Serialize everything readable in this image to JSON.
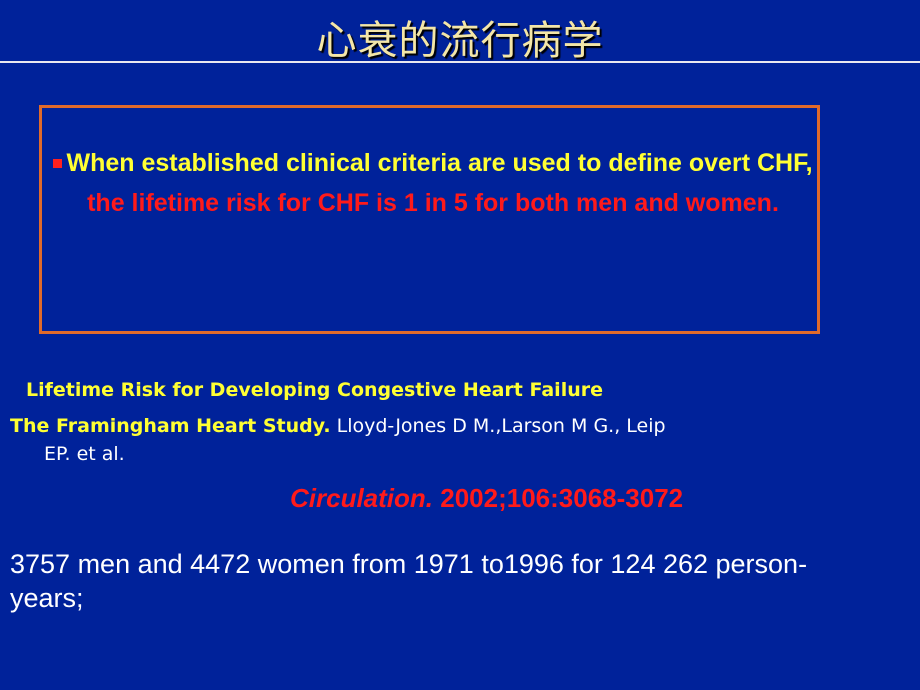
{
  "title": "心衰的流行病学",
  "colors": {
    "background": "#00229a",
    "title": "#f3e6a8",
    "box_border": "#e06a2a",
    "highlight_yellow": "#ffff33",
    "highlight_red": "#ff1a1a"
  },
  "box": {
    "bullet_icon": "square-bullet",
    "text_yellow": "When established clinical criteria are used to define overt CHF, ",
    "text_red": "the lifetime risk for CHF is 1 in 5 for both men and women",
    "text_end": "."
  },
  "reference": {
    "article_title": "Lifetime Risk for Developing Congestive Heart Failure",
    "study": "The Framingham Heart Study.",
    "authors_line1": " Lloyd-Jones D M.,Larson M G., Leip",
    "authors_line2": "EP. et al.",
    "journal_name": "Circulation.",
    "journal_details": " 2002;106:3068-3072"
  },
  "stats": "3757 men and 4472 women from 1971 to1996 for 124 262 person-years;"
}
